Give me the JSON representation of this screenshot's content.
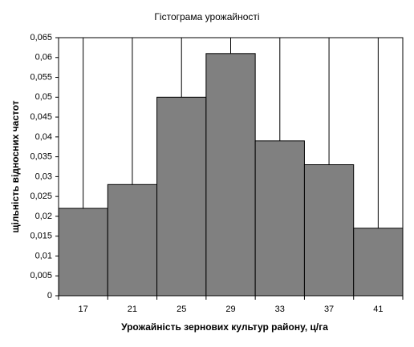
{
  "chart_data": {
    "type": "bar",
    "title": "Гістограма урожайності",
    "xlabel": "Урожайність зернових культур району, ц/га",
    "ylabel": "щільність відносних частот",
    "categories": [
      "17",
      "21",
      "25",
      "29",
      "33",
      "37",
      "41"
    ],
    "values": [
      0.022,
      0.028,
      0.05,
      0.061,
      0.039,
      0.033,
      0.017
    ],
    "color": "#808080",
    "ylim": [
      0,
      0.065
    ],
    "yticks": [
      0,
      {
        "value": 0.005,
        "label": "0,005"
      },
      {
        "value": 0.01,
        "label": "0,01"
      },
      {
        "value": 0.015,
        "label": "0,015"
      },
      {
        "value": 0.02,
        "label": "0,02"
      },
      {
        "value": 0.025,
        "label": "0,025"
      },
      {
        "value": 0.03,
        "label": "0,03"
      },
      {
        "value": 0.035,
        "label": "0,035"
      },
      {
        "value": 0.04,
        "label": "0,04"
      },
      {
        "value": 0.045,
        "label": "0,045"
      },
      {
        "value": 0.05,
        "label": "0,05"
      },
      {
        "value": 0.055,
        "label": "0,055"
      },
      {
        "value": 0.06,
        "label": "0,06"
      },
      {
        "value": 0.065,
        "label": "0,065"
      }
    ],
    "grid": true
  }
}
